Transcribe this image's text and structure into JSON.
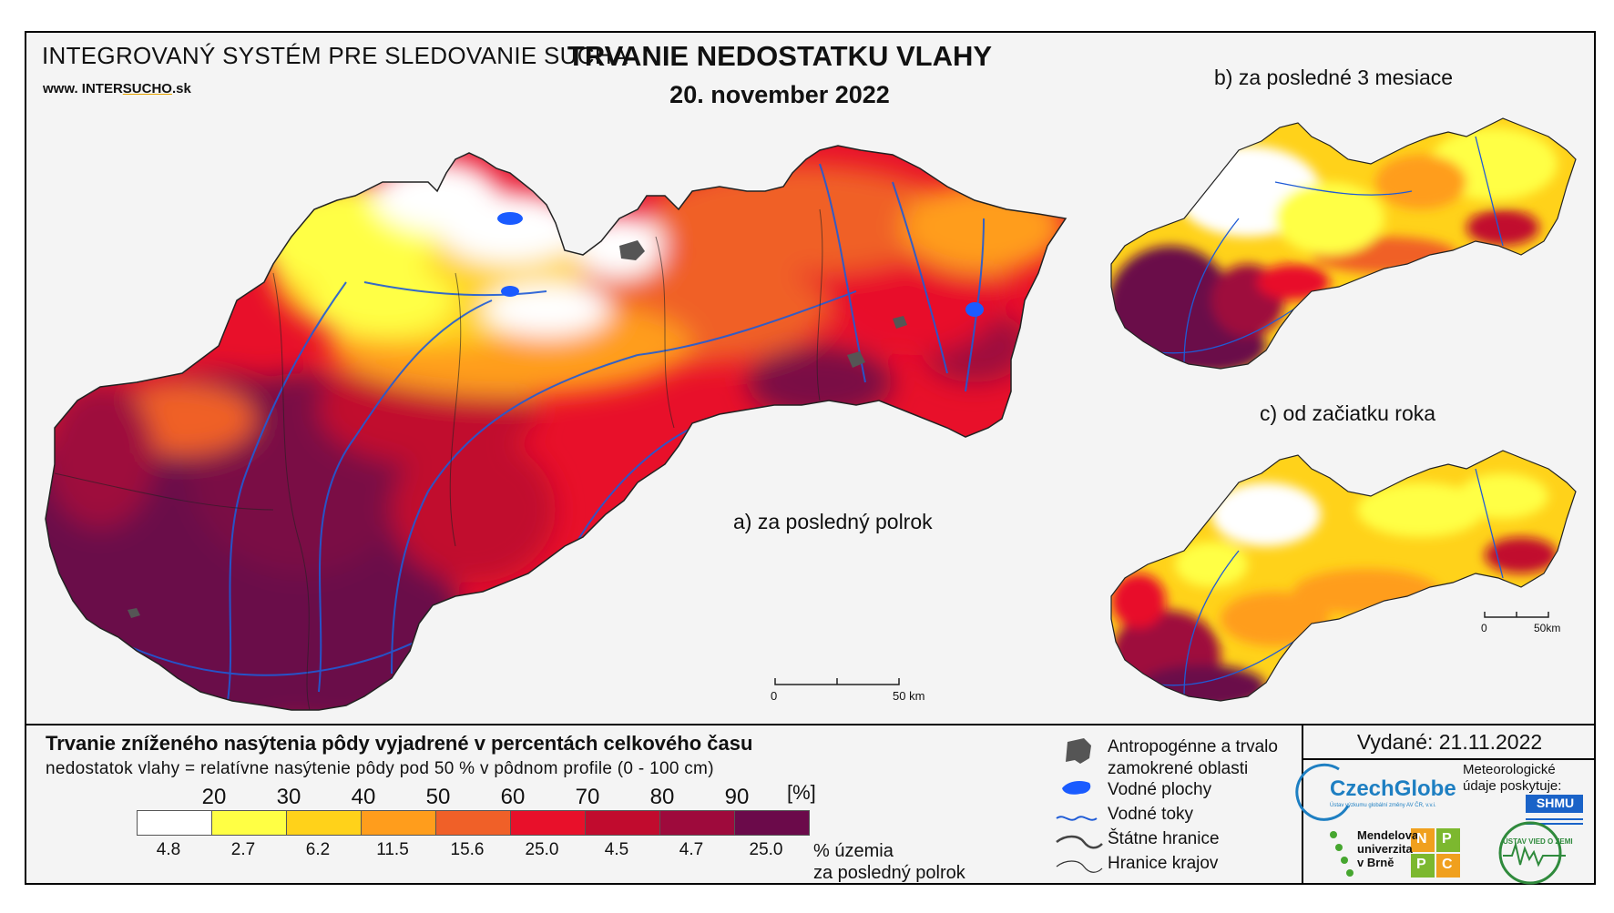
{
  "header": {
    "system_title": "INTEGROVANÝ SYSTÉM PRE SLEDOVANIE SUCHA",
    "url_prefix": "www. ",
    "url_inter": "INTER",
    "url_sucho": "SUCHO",
    "url_suffix": ".sk",
    "main_title": "TRVANIE NEDOSTATKU VLAHY",
    "date": "20. november 2022"
  },
  "panels": {
    "a_label": "a) za posledný polrok",
    "b_label": "b) za posledné 3 mesiace",
    "c_label": "c) od začiatku roka"
  },
  "scale": {
    "main_zero": "0",
    "main_end": "50 km",
    "small_zero": "0",
    "small_end": "50km"
  },
  "legend": {
    "title": "Trvanie zníženého nasýtenia pôdy vyjadrené v percentách celkového času",
    "subtitle": "nedostatok vlahy = relatívne nasýtenie pôdy pod 50 % v pôdnom profile (0 - 100 cm)",
    "unit": "[%]",
    "ticks": [
      "20",
      "30",
      "40",
      "50",
      "60",
      "70",
      "80",
      "90"
    ],
    "classes": [
      {
        "color": "#ffffff",
        "pct": "4.8"
      },
      {
        "color": "#ffff44",
        "pct": "2.7"
      },
      {
        "color": "#ffd21a",
        "pct": "6.2"
      },
      {
        "color": "#ff9d1c",
        "pct": "11.5"
      },
      {
        "color": "#f06028",
        "pct": "15.6"
      },
      {
        "color": "#e8102a",
        "pct": "25.0"
      },
      {
        "color": "#c10b2e",
        "pct": "4.5"
      },
      {
        "color": "#9e0a3c",
        "pct": "4.7"
      },
      {
        "color": "#6b0a4a",
        "pct": "25.0"
      }
    ],
    "pct_unit_line1": "% územia",
    "pct_unit_line2": "za posledný polrok",
    "items": [
      {
        "icon": "anthropogenic-area-icon",
        "label_line1": "Antropogénne a trvalo",
        "label_line2": "zamokrené oblasti"
      },
      {
        "icon": "water-body-icon",
        "label_line1": "Vodné plochy"
      },
      {
        "icon": "river-icon",
        "label_line1": "Vodné toky"
      },
      {
        "icon": "state-border-icon",
        "label_line1": "Štátne hranice"
      },
      {
        "icon": "region-border-icon",
        "label_line1": "Hranice krajov"
      }
    ]
  },
  "issued": "Vydané: 21.11.2022",
  "credits": {
    "czechglobe": "CzechGlobe",
    "czechglobe_sub": "Ústav výzkumu globální změny AV ČR, v.v.i.",
    "meteo_text": "Meteorologické údaje poskytuje:",
    "shmu": "SHMU",
    "mendel_l1": "Mendelova",
    "mendel_l2": "univerzita",
    "mendel_l3": "v Brně",
    "nppc": [
      "N",
      "P",
      "P",
      "C"
    ],
    "uvz": "ÚSTAV VIED O ZEMI"
  },
  "colors": {
    "river": "#1f5bd6",
    "water": "#1a5bff",
    "anthropogenic": "#555555"
  }
}
